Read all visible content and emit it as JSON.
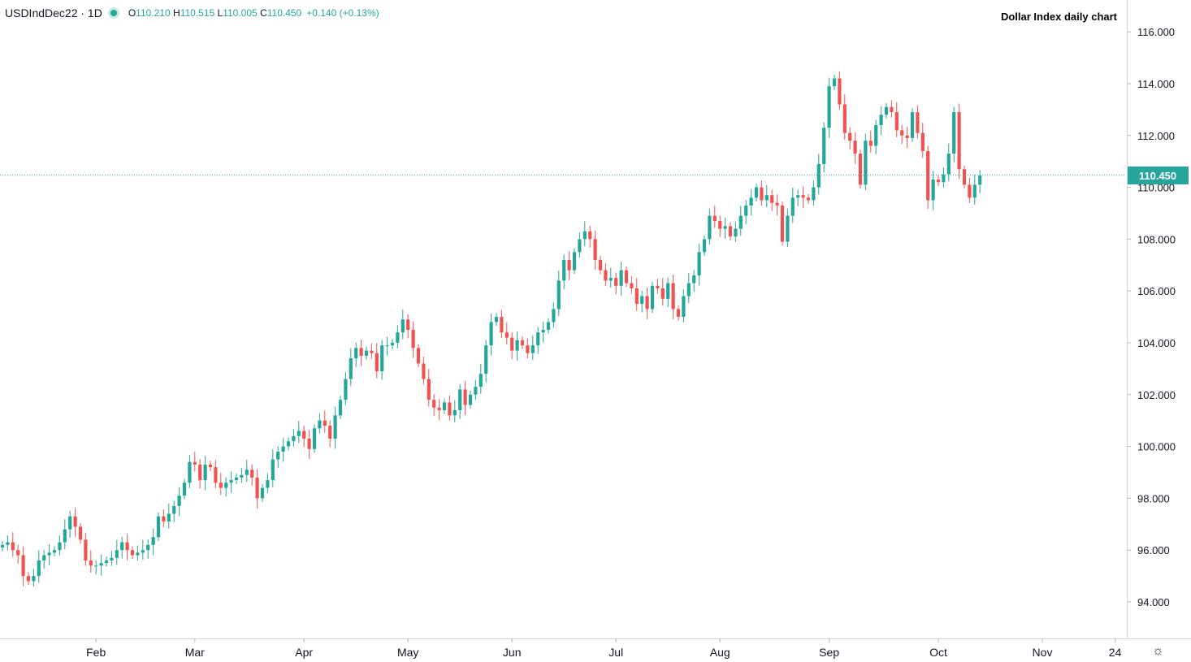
{
  "legend": {
    "symbol": "USDIndDec22 · 1D",
    "open_label": "O",
    "open": "110.210",
    "high_label": "H",
    "high": "110.515",
    "low_label": "L",
    "low": "110.005",
    "close_label": "C",
    "close": "110.450",
    "change": "+0.140 (+0.13%)"
  },
  "title": "Dollar Index daily chart",
  "last_price_label": "110.450",
  "settings_icon": "gear-icon",
  "colors": {
    "up": "#26a69a",
    "down": "#ef5350",
    "last_price_line": "#26a69a"
  },
  "chart_data": {
    "type": "candlestick",
    "title": "Dollar Index daily chart",
    "ylim": [
      92.5,
      117.0
    ],
    "y_ticks": [
      "94.000",
      "96.000",
      "98.000",
      "100.000",
      "102.000",
      "104.000",
      "106.000",
      "108.000",
      "110.000",
      "112.000",
      "114.000",
      "116.000"
    ],
    "x_ticks": [
      "Feb",
      "Mar",
      "Apr",
      "May",
      "Jun",
      "Jul",
      "Aug",
      "Sep",
      "Oct",
      "Nov",
      "24"
    ],
    "last_price": 110.45,
    "grid": false,
    "series": [
      {
        "name": "USDIndDec22",
        "close": [
          96.2,
          96.3,
          96.0,
          95.8,
          95.0,
          94.8,
          95.0,
          95.6,
          95.8,
          95.9,
          96.0,
          96.3,
          96.8,
          97.3,
          96.9,
          96.4,
          95.6,
          95.4,
          95.4,
          95.5,
          95.6,
          95.7,
          96.0,
          96.3,
          96.0,
          95.8,
          95.9,
          96.0,
          96.2,
          96.5,
          97.3,
          97.1,
          97.4,
          97.7,
          98.1,
          98.6,
          99.4,
          99.3,
          98.7,
          99.3,
          99.2,
          98.6,
          98.4,
          98.6,
          98.7,
          98.8,
          98.9,
          99.1,
          98.8,
          98.0,
          98.4,
          98.7,
          99.5,
          99.8,
          100.0,
          100.2,
          100.4,
          100.6,
          100.3,
          99.9,
          100.7,
          101.0,
          100.8,
          100.3,
          101.2,
          101.8,
          102.6,
          103.4,
          103.8,
          103.5,
          103.7,
          103.6,
          102.9,
          103.9,
          103.9,
          104.0,
          104.4,
          104.9,
          104.5,
          103.8,
          103.2,
          102.6,
          101.8,
          101.5,
          101.4,
          101.7,
          101.2,
          101.4,
          102.2,
          101.6,
          102.0,
          102.3,
          102.8,
          103.9,
          104.8,
          105.0,
          104.4,
          104.2,
          103.7,
          104.1,
          103.9,
          103.6,
          103.9,
          104.4,
          104.5,
          104.8,
          105.3,
          106.4,
          107.2,
          106.8,
          107.5,
          108.0,
          108.3,
          108.0,
          107.2,
          106.8,
          106.4,
          106.5,
          106.2,
          106.8,
          106.3,
          106.1,
          105.5,
          105.8,
          105.3,
          106.2,
          106.1,
          105.7,
          106.3,
          105.3,
          105.0,
          105.8,
          106.3,
          106.6,
          107.5,
          108.0,
          108.9,
          108.7,
          108.4,
          108.5,
          108.1,
          108.4,
          108.9,
          109.3,
          109.6,
          110.0,
          109.5,
          109.7,
          109.4,
          109.3,
          107.9,
          108.9,
          109.6,
          109.7,
          109.6,
          109.5,
          110.0,
          110.9,
          112.3,
          113.9,
          114.2,
          113.2,
          112.1,
          111.8,
          111.3,
          110.1,
          111.8,
          111.6,
          112.4,
          112.8,
          113.1,
          112.9,
          112.2,
          112.0,
          111.9,
          112.9,
          112.1,
          111.4,
          109.5,
          110.3,
          110.2,
          110.5,
          111.3,
          112.9,
          110.7,
          110.1,
          109.6,
          110.1,
          110.45
        ]
      }
    ],
    "note_unused": ""
  }
}
